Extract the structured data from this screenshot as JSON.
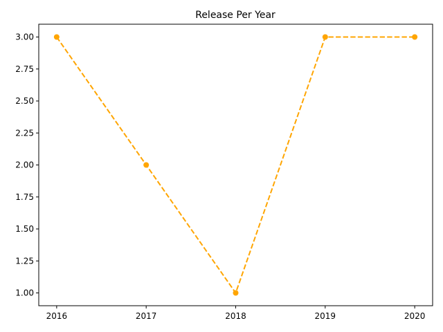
{
  "chart_data": {
    "type": "line",
    "title": "Release Per Year",
    "xlabel": "",
    "ylabel": "",
    "categories": [
      "2016",
      "2017",
      "2018",
      "2019",
      "2020"
    ],
    "x": [
      2016,
      2017,
      2018,
      2019,
      2020
    ],
    "series": [
      {
        "values": [
          3,
          2,
          1,
          3,
          3
        ],
        "color": "#ffa500",
        "line_style": "dashed",
        "marker": "circle"
      }
    ],
    "xlim": [
      2015.8,
      2020.2
    ],
    "ylim": [
      0.9,
      3.1
    ],
    "yticks": [
      "1.00",
      "1.25",
      "1.50",
      "1.75",
      "2.00",
      "2.25",
      "2.50",
      "2.75",
      "3.00"
    ],
    "grid": false,
    "legend": "none"
  }
}
